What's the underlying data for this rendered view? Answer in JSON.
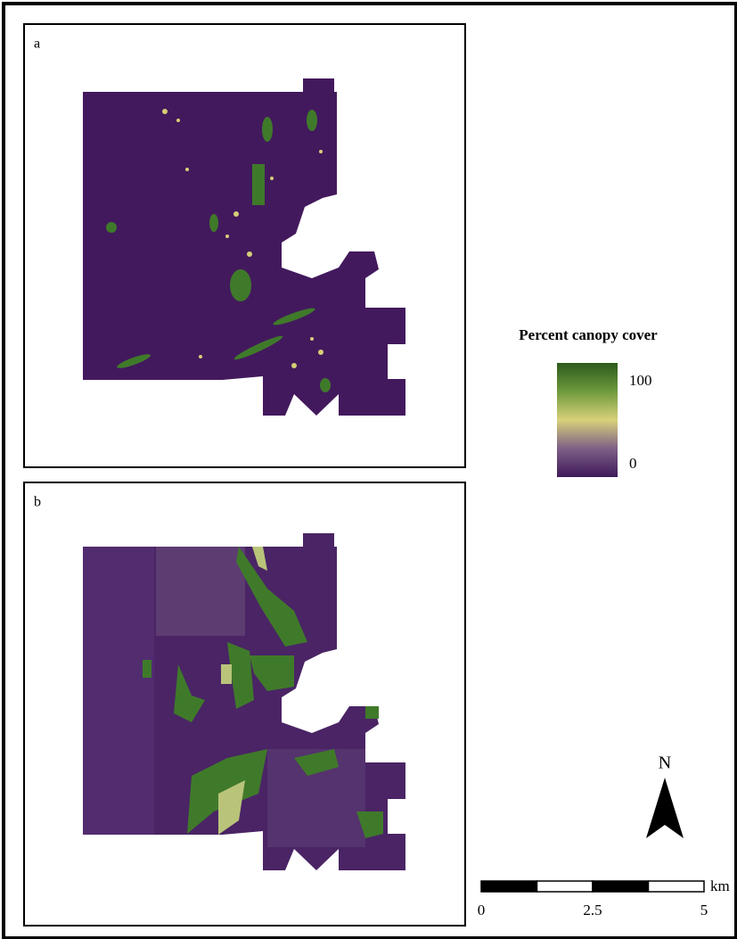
{
  "panels": [
    {
      "label": "a"
    },
    {
      "label": "b"
    }
  ],
  "legend": {
    "title": "Percent canopy cover",
    "ticks": [
      100,
      0
    ]
  },
  "north_arrow": {
    "label": "N"
  },
  "scale_bar": {
    "ticks": [
      0,
      2.5,
      5
    ],
    "unit": "km"
  }
}
